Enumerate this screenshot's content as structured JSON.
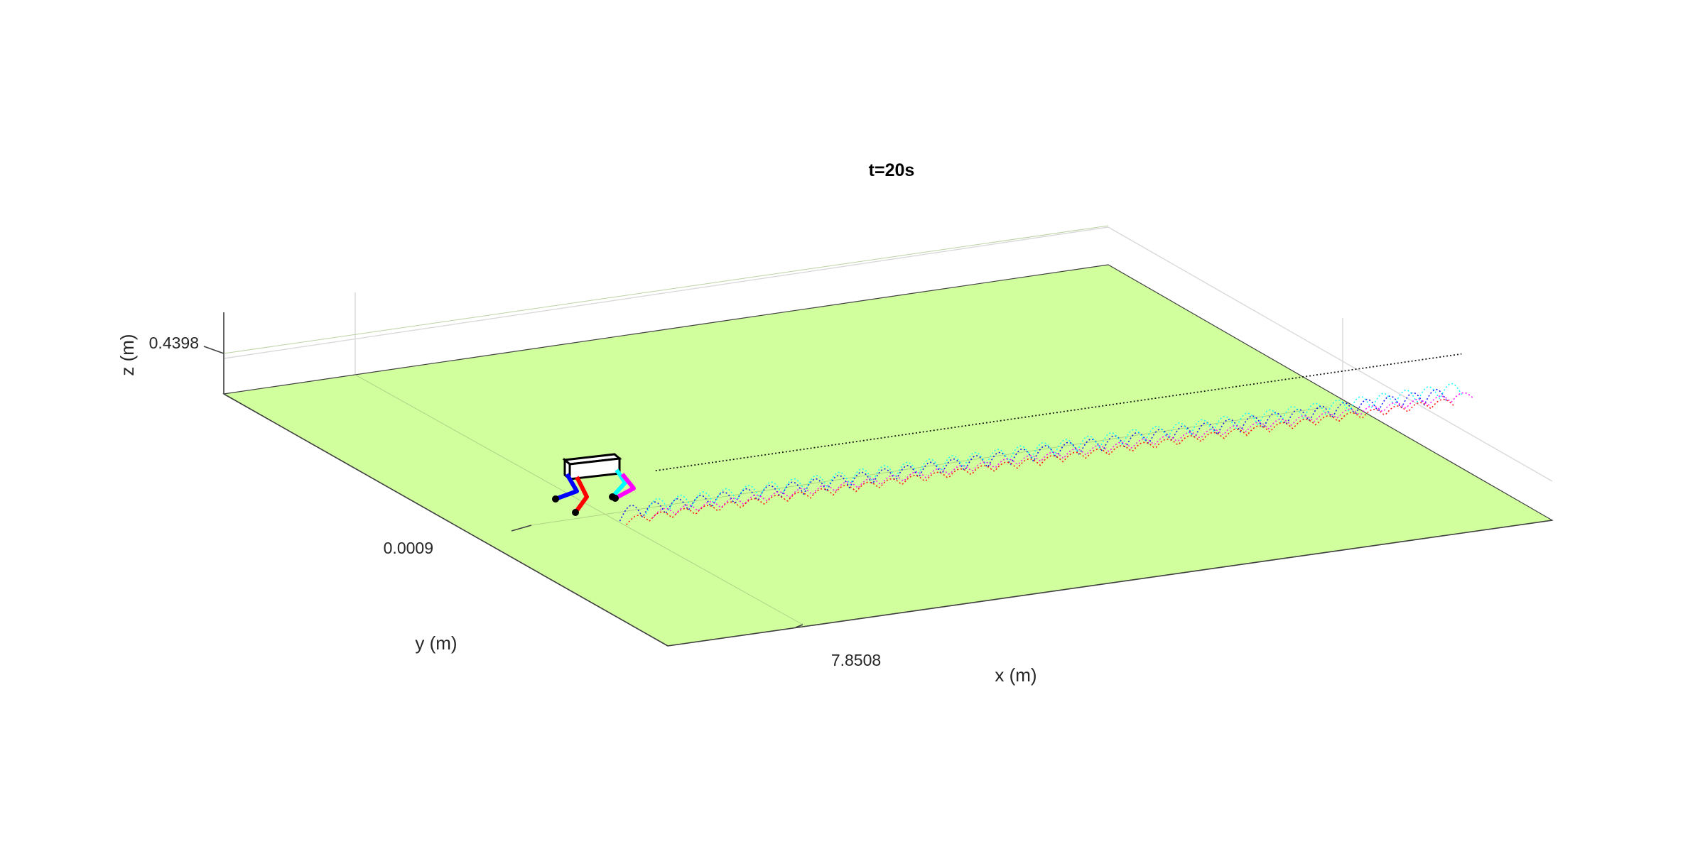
{
  "chart_data": {
    "type": "3d-line",
    "title": "t=20s",
    "xlabel": "x (m)",
    "ylabel": "y (m)",
    "zlabel": "z (m)",
    "x_ticks": [
      "7.8508"
    ],
    "y_ticks": [
      "0.0009"
    ],
    "z_ticks": [
      "0.4398"
    ],
    "ground_color": "#d2ff9e",
    "series": [
      {
        "color": "#0000ff",
        "style": "dotted",
        "points": [
          [
            0.6,
            -0.15
          ],
          [
            16.8,
            -0.12
          ]
        ]
      },
      {
        "color": "#ff0000",
        "style": "dotted",
        "points": [
          [
            0.6,
            -0.3
          ],
          [
            16.8,
            -0.27
          ]
        ]
      },
      {
        "color": "#00ffff",
        "style": "dotted",
        "points": [
          [
            1.2,
            -0.05
          ],
          [
            17.2,
            0.0
          ]
        ]
      },
      {
        "color": "#ff00ff",
        "style": "dotted",
        "points": [
          [
            1.2,
            -0.2
          ],
          [
            17.3,
            -0.15
          ]
        ]
      },
      {
        "color": "#000000",
        "style": "dotted",
        "points": [
          [
            1.6,
            0.2
          ],
          [
            17.4,
            0.25
          ]
        ]
      }
    ],
    "robot_legs": [
      {
        "color": "#0000ff"
      },
      {
        "color": "#ff0000"
      },
      {
        "color": "#00ffff"
      },
      {
        "color": "#ff00ff"
      }
    ]
  }
}
